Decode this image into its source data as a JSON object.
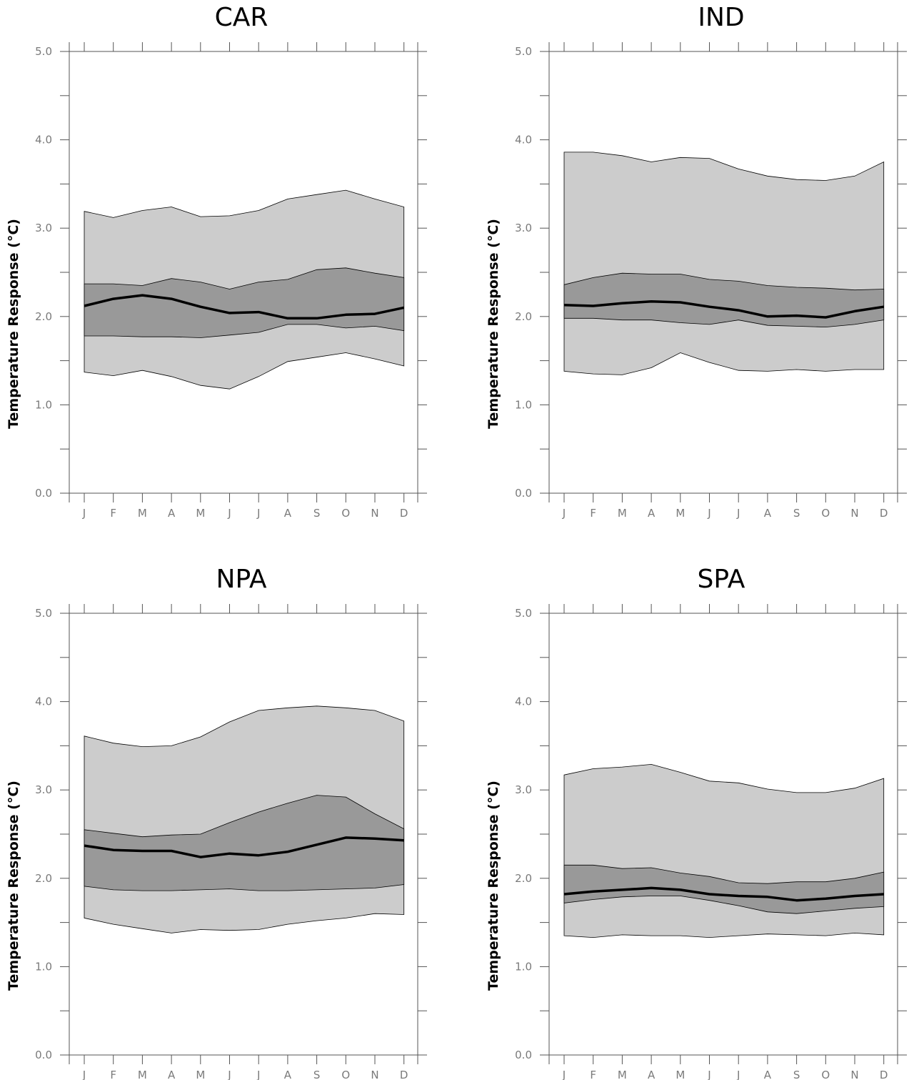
{
  "chart_data": [
    {
      "type": "area",
      "title": "CAR",
      "ylabel": "Temperature Response (°C)",
      "xlabel": "",
      "ylim": [
        0,
        5
      ],
      "yticks": [
        "0.0",
        "1.0",
        "2.0",
        "3.0",
        "4.0",
        "5.0"
      ],
      "categories": [
        "J",
        "F",
        "M",
        "A",
        "M",
        "J",
        "J",
        "A",
        "S",
        "O",
        "N",
        "D"
      ],
      "outer_band": {
        "lower": [
          1.37,
          1.33,
          1.39,
          1.32,
          1.22,
          1.18,
          1.32,
          1.49,
          1.54,
          1.59,
          1.52,
          1.44
        ],
        "upper": [
          3.19,
          3.12,
          3.2,
          3.24,
          3.13,
          3.14,
          3.2,
          3.33,
          3.38,
          3.43,
          3.33,
          3.24
        ]
      },
      "inner_band": {
        "lower": [
          1.78,
          1.78,
          1.77,
          1.77,
          1.76,
          1.79,
          1.82,
          1.91,
          1.91,
          1.87,
          1.89,
          1.84
        ],
        "upper": [
          2.37,
          2.37,
          2.35,
          2.43,
          2.39,
          2.31,
          2.39,
          2.42,
          2.53,
          2.55,
          2.49,
          2.44
        ]
      },
      "central_line": [
        2.12,
        2.2,
        2.24,
        2.2,
        2.11,
        2.04,
        2.05,
        1.98,
        1.98,
        2.02,
        2.03,
        2.1
      ],
      "grid": false
    },
    {
      "type": "area",
      "title": "IND",
      "ylabel": "Temperature Response (°C)",
      "xlabel": "",
      "ylim": [
        0,
        5
      ],
      "yticks": [
        "0.0",
        "1.0",
        "2.0",
        "3.0",
        "4.0",
        "5.0"
      ],
      "categories": [
        "J",
        "F",
        "M",
        "A",
        "M",
        "J",
        "J",
        "A",
        "S",
        "O",
        "N",
        "D"
      ],
      "outer_band": {
        "lower": [
          1.38,
          1.35,
          1.34,
          1.42,
          1.59,
          1.48,
          1.39,
          1.38,
          1.4,
          1.38,
          1.4,
          1.4
        ],
        "upper": [
          3.86,
          3.86,
          3.82,
          3.75,
          3.8,
          3.79,
          3.67,
          3.59,
          3.55,
          3.54,
          3.59,
          3.75
        ]
      },
      "inner_band": {
        "lower": [
          1.98,
          1.98,
          1.96,
          1.96,
          1.93,
          1.91,
          1.96,
          1.9,
          1.89,
          1.88,
          1.91,
          1.96
        ],
        "upper": [
          2.36,
          2.44,
          2.49,
          2.48,
          2.48,
          2.42,
          2.4,
          2.35,
          2.33,
          2.32,
          2.3,
          2.31
        ]
      },
      "central_line": [
        2.13,
        2.12,
        2.15,
        2.17,
        2.16,
        2.11,
        2.07,
        2.0,
        2.01,
        1.99,
        2.06,
        2.11
      ],
      "grid": false
    },
    {
      "type": "area",
      "title": "NPA",
      "ylabel": "Temperature Response (°C)",
      "xlabel": "",
      "ylim": [
        0,
        5
      ],
      "yticks": [
        "0.0",
        "1.0",
        "2.0",
        "3.0",
        "4.0",
        "5.0"
      ],
      "categories": [
        "J",
        "F",
        "M",
        "A",
        "M",
        "J",
        "J",
        "A",
        "S",
        "O",
        "N",
        "D"
      ],
      "outer_band": {
        "lower": [
          1.55,
          1.48,
          1.43,
          1.38,
          1.42,
          1.41,
          1.42,
          1.48,
          1.52,
          1.55,
          1.6,
          1.59
        ],
        "upper": [
          3.61,
          3.53,
          3.49,
          3.5,
          3.6,
          3.77,
          3.9,
          3.93,
          3.95,
          3.93,
          3.9,
          3.78
        ]
      },
      "inner_band": {
        "lower": [
          1.91,
          1.87,
          1.86,
          1.86,
          1.87,
          1.88,
          1.86,
          1.86,
          1.87,
          1.88,
          1.89,
          1.93
        ],
        "upper": [
          2.55,
          2.51,
          2.47,
          2.49,
          2.5,
          2.63,
          2.75,
          2.85,
          2.94,
          2.92,
          2.73,
          2.56
        ]
      },
      "central_line": [
        2.37,
        2.32,
        2.31,
        2.31,
        2.24,
        2.28,
        2.26,
        2.3,
        2.38,
        2.46,
        2.45,
        2.43
      ],
      "grid": false
    },
    {
      "type": "area",
      "title": "SPA",
      "ylabel": "Temperature Response (°C)",
      "xlabel": "",
      "ylim": [
        0,
        5
      ],
      "yticks": [
        "0.0",
        "1.0",
        "2.0",
        "3.0",
        "4.0",
        "5.0"
      ],
      "categories": [
        "J",
        "F",
        "M",
        "A",
        "M",
        "J",
        "J",
        "A",
        "S",
        "O",
        "N",
        "D"
      ],
      "outer_band": {
        "lower": [
          1.35,
          1.33,
          1.36,
          1.35,
          1.35,
          1.33,
          1.35,
          1.37,
          1.36,
          1.35,
          1.38,
          1.36
        ],
        "upper": [
          3.17,
          3.24,
          3.26,
          3.29,
          3.2,
          3.1,
          3.08,
          3.01,
          2.97,
          2.97,
          3.02,
          3.13
        ]
      },
      "inner_band": {
        "lower": [
          1.72,
          1.76,
          1.79,
          1.8,
          1.8,
          1.75,
          1.69,
          1.62,
          1.6,
          1.63,
          1.66,
          1.68
        ],
        "upper": [
          2.15,
          2.15,
          2.11,
          2.12,
          2.06,
          2.02,
          1.95,
          1.94,
          1.96,
          1.96,
          2.0,
          2.07
        ]
      },
      "central_line": [
        1.82,
        1.85,
        1.87,
        1.89,
        1.87,
        1.82,
        1.8,
        1.79,
        1.75,
        1.77,
        1.8,
        1.82
      ],
      "grid": false
    }
  ],
  "colors": {
    "outer_band": "#cccccc",
    "inner_band": "#999999",
    "central_line": "#000000",
    "axis": "#555555",
    "tick_label": "#7a7a7a"
  }
}
